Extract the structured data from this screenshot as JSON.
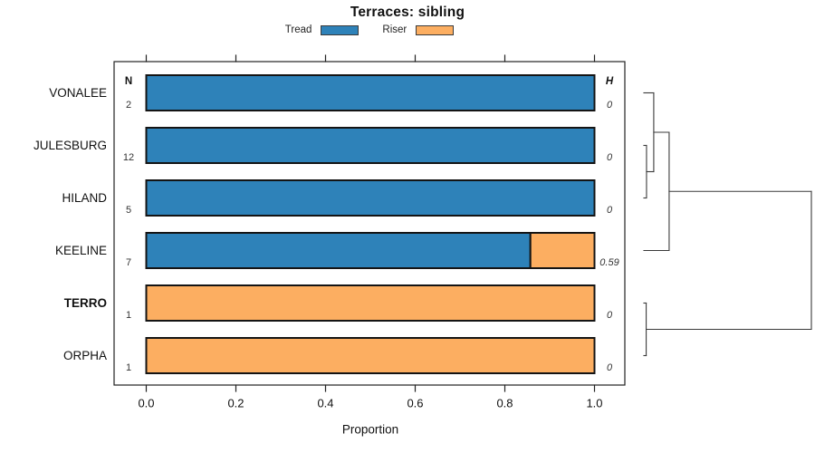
{
  "title": "Terraces: sibling",
  "legend": {
    "items": [
      {
        "label": "Tread",
        "color": "#2E82B9"
      },
      {
        "label": "Riser",
        "color": "#FCAE61"
      }
    ]
  },
  "chart_data": {
    "type": "bar",
    "orientation": "horizontal",
    "stacked": true,
    "grid": false,
    "title": "Terraces: sibling",
    "xlabel": "Proportion",
    "xlim": [
      0.0,
      1.0
    ],
    "xticks": [
      "0.0",
      "0.2",
      "0.4",
      "0.6",
      "0.8",
      "1.0"
    ],
    "categories": [
      "VONALEE",
      "JULESBURG",
      "HILAND",
      "KEELINE",
      "TERRO",
      "ORPHA"
    ],
    "bold_categories": [
      "TERRO"
    ],
    "columns": {
      "n_header": "N",
      "h_header": "H"
    },
    "n_values": [
      "2",
      "12",
      "5",
      "7",
      "1",
      "1"
    ],
    "h_values": [
      "0",
      "0",
      "0",
      "0.59",
      "0",
      "0"
    ],
    "series": [
      {
        "name": "Tread",
        "color": "#2E82B9",
        "values": [
          1.0,
          1.0,
          1.0,
          0.857,
          0.0,
          0.0
        ]
      },
      {
        "name": "Riser",
        "color": "#FCAE61",
        "values": [
          0.0,
          0.0,
          0.0,
          0.143,
          1.0,
          1.0
        ]
      }
    ],
    "dendrogram": {
      "position": "right",
      "merges": [
        {
          "a": "JULESBURG",
          "b": "HILAND",
          "height": 0.016
        },
        {
          "a": "VONALEE",
          "b": "#0",
          "height": 0.059
        },
        {
          "a": "#1",
          "b": "KEELINE",
          "height": 0.151
        },
        {
          "a": "TERRO",
          "b": "ORPHA",
          "height": 0.014
        },
        {
          "a": "#2",
          "b": "#3",
          "height": 1.0
        }
      ]
    }
  }
}
